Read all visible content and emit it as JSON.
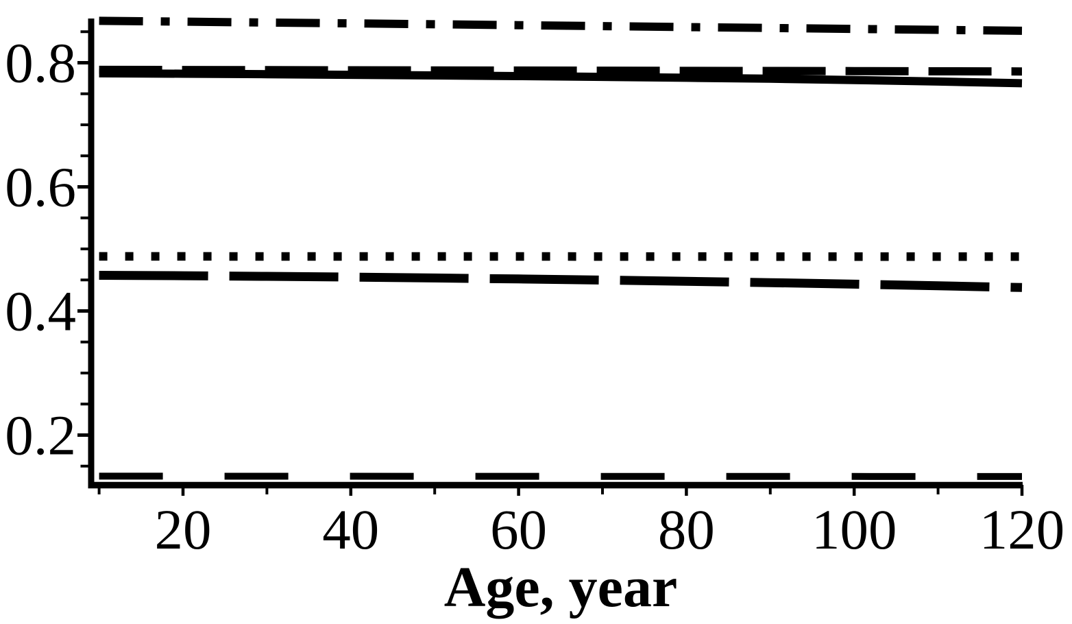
{
  "figure": {
    "background": "#ffffff",
    "ink": "#000000"
  },
  "chart_data": {
    "type": "line",
    "title": "",
    "xlabel": "Age, year",
    "ylabel": "",
    "grid": false,
    "legend": "none",
    "xlim": [
      9,
      120.1
    ],
    "ylim": [
      0.119,
      0.871
    ],
    "x_ticks_major": [
      20,
      40,
      60,
      80,
      100,
      120
    ],
    "x_tick_labels": [
      "20",
      "40",
      "60",
      "80",
      "100",
      "120"
    ],
    "x_ticks_minor": [
      10,
      30,
      50,
      70,
      90,
      110
    ],
    "y_ticks_major": [
      0.8,
      0.6,
      0.4,
      0.2
    ],
    "y_tick_labels": [
      "0.8",
      "0.6",
      "0.4",
      "0.2"
    ],
    "y_ticks_minor": [
      0.85,
      0.75,
      0.7,
      0.65,
      0.55,
      0.5,
      0.45,
      0.35,
      0.3,
      0.25,
      0.15
    ],
    "x": [
      10,
      20,
      30,
      40,
      50,
      60,
      70,
      80,
      90,
      100,
      110,
      120
    ],
    "series": [
      {
        "name": "curve-top-dash-dot",
        "line_style": "dash-dot",
        "values": [
          0.8675,
          0.8662,
          0.8648,
          0.8634,
          0.862,
          0.8605,
          0.859,
          0.8575,
          0.856,
          0.8545,
          0.853,
          0.8515
        ]
      },
      {
        "name": "curve-upper-long-dash",
        "line_style": "long dash",
        "values": [
          0.7885,
          0.7883,
          0.7881,
          0.7879,
          0.7876,
          0.7874,
          0.7872,
          0.7869,
          0.7867,
          0.7865,
          0.7862,
          0.786
        ]
      },
      {
        "name": "curve-solid",
        "line_style": "solid",
        "values": [
          0.783,
          0.7823,
          0.7815,
          0.7806,
          0.7796,
          0.7785,
          0.7772,
          0.7758,
          0.7743,
          0.7721,
          0.7697,
          0.767
        ]
      },
      {
        "name": "curve-dotted",
        "line_style": "dotted",
        "values": [
          0.488,
          0.488,
          0.4879,
          0.4879,
          0.4878,
          0.4878,
          0.4877,
          0.4877,
          0.4876,
          0.4876,
          0.4875,
          0.4875
        ]
      },
      {
        "name": "curve-middle-long-dash",
        "line_style": "very long dash",
        "values": [
          0.4575,
          0.4568,
          0.4558,
          0.4546,
          0.4532,
          0.4516,
          0.4498,
          0.4478,
          0.4456,
          0.4432,
          0.4406,
          0.4378
        ]
      },
      {
        "name": "curve-bottom-spaced-dash",
        "line_style": "spaced long dash",
        "values": [
          0.1338,
          0.1338,
          0.1337,
          0.1337,
          0.1336,
          0.1336,
          0.1335,
          0.1335,
          0.1334,
          0.1334,
          0.1333,
          0.1333
        ]
      }
    ]
  }
}
